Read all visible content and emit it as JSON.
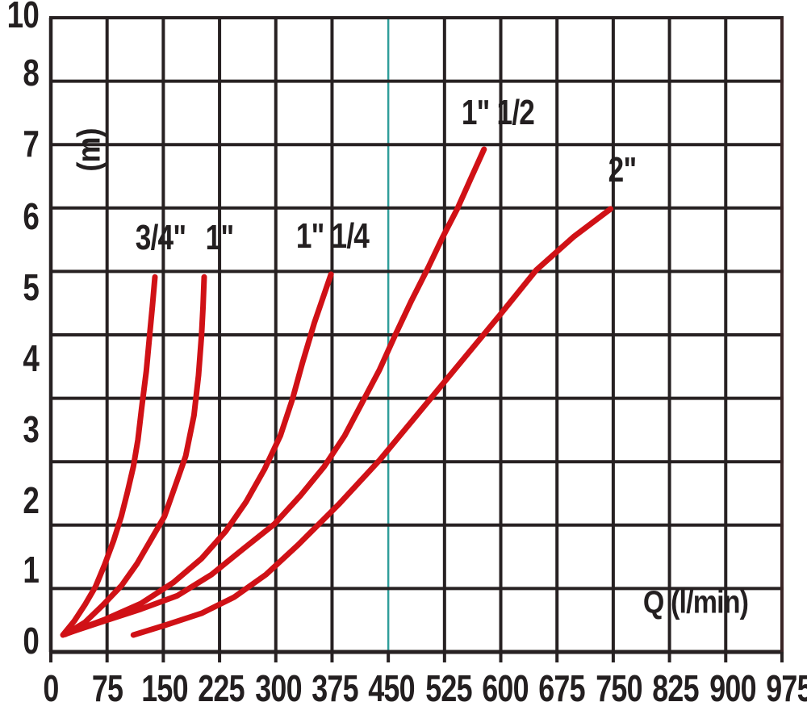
{
  "chart_data": {
    "type": "line",
    "title": "",
    "xlabel": "Q (l/min)",
    "ylabel": "(m)",
    "xlim": [
      0,
      975
    ],
    "ylim": [
      0,
      10
    ],
    "grid": true,
    "grid_color": "#272122",
    "background_color": "#ffffff",
    "x_ticks": [
      0,
      75,
      150,
      225,
      300,
      375,
      450,
      525,
      600,
      675,
      750,
      825,
      900,
      975
    ],
    "y_tick_labels": [
      "10",
      "8",
      "7",
      "6",
      "5",
      "4",
      "3",
      "2",
      "1",
      "0"
    ],
    "y_gridline_values": [
      10,
      9,
      8,
      7,
      6,
      5,
      4,
      3,
      2,
      1,
      0
    ],
    "highlight_x_line": {
      "value": 450,
      "color": "#2f9e9b"
    },
    "series_color": "#d01116",
    "series": [
      {
        "name": "3/4\"",
        "points": [
          [
            16,
            0.08
          ],
          [
            31,
            0.28
          ],
          [
            45,
            0.51
          ],
          [
            59,
            0.77
          ],
          [
            71,
            1.08
          ],
          [
            83,
            1.43
          ],
          [
            93,
            1.77
          ],
          [
            101,
            2.11
          ],
          [
            109,
            2.48
          ],
          [
            115,
            2.86
          ],
          [
            120,
            3.32
          ],
          [
            126,
            3.84
          ],
          [
            131,
            4.41
          ],
          [
            134,
            4.76
          ],
          [
            137.5,
            5.18
          ]
        ]
      },
      {
        "name": "1\"",
        "points": [
          [
            19,
            0.09
          ],
          [
            45,
            0.26
          ],
          [
            69,
            0.51
          ],
          [
            93,
            0.78
          ],
          [
            114,
            1.1
          ],
          [
            135,
            1.49
          ],
          [
            150,
            1.77
          ],
          [
            165,
            2.23
          ],
          [
            178,
            2.63
          ],
          [
            189,
            3.21
          ],
          [
            195,
            3.78
          ],
          [
            199,
            4.36
          ],
          [
            201,
            4.76
          ],
          [
            202.5,
            5.18
          ]
        ]
      },
      {
        "name": "1\" 1/4",
        "points": [
          [
            21,
            0.1
          ],
          [
            71,
            0.3
          ],
          [
            119,
            0.53
          ],
          [
            162,
            0.83
          ],
          [
            199,
            1.17
          ],
          [
            231,
            1.56
          ],
          [
            258,
            1.98
          ],
          [
            282,
            2.44
          ],
          [
            303,
            2.92
          ],
          [
            319,
            3.44
          ],
          [
            332,
            3.95
          ],
          [
            348,
            4.53
          ],
          [
            370,
            5.22
          ]
        ]
      },
      {
        "name": "1\" 1/2",
        "points": [
          [
            23,
            0.11
          ],
          [
            71,
            0.28
          ],
          [
            119,
            0.45
          ],
          [
            167,
            0.64
          ],
          [
            212,
            0.94
          ],
          [
            252,
            1.29
          ],
          [
            295,
            1.66
          ],
          [
            329,
            2.06
          ],
          [
            361,
            2.48
          ],
          [
            388,
            2.92
          ],
          [
            412,
            3.41
          ],
          [
            434,
            3.86
          ],
          [
            455,
            4.36
          ],
          [
            476,
            4.84
          ],
          [
            498,
            5.31
          ],
          [
            517,
            5.74
          ],
          [
            537,
            6.16
          ],
          [
            554,
            6.57
          ],
          [
            572,
            7.0
          ]
        ]
      },
      {
        "name": "2\"",
        "points": [
          [
            109,
            0.08
          ],
          [
            151,
            0.22
          ],
          [
            199,
            0.39
          ],
          [
            242,
            0.62
          ],
          [
            284,
            0.94
          ],
          [
            327,
            1.37
          ],
          [
            380,
            1.94
          ],
          [
            434,
            2.57
          ],
          [
            487,
            3.26
          ],
          [
            540,
            3.95
          ],
          [
            593,
            4.64
          ],
          [
            641,
            5.28
          ],
          [
            691,
            5.76
          ],
          [
            739,
            6.15
          ]
        ]
      }
    ]
  }
}
